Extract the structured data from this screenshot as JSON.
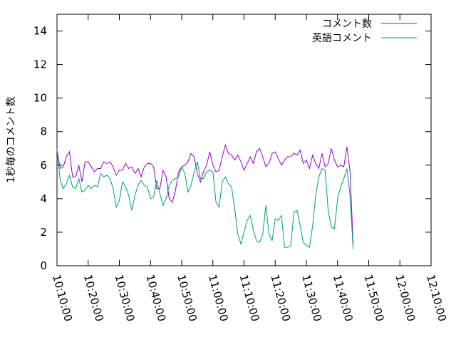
{
  "chart_data": {
    "type": "line",
    "title": "",
    "xlabel": "",
    "ylabel": "1秒毎のコメント数",
    "xlim": [
      "10:10:00",
      "12:10:00"
    ],
    "ylim": [
      0,
      15
    ],
    "x_ticks": [
      "10:10:00",
      "10:20:00",
      "10:30:00",
      "10:40:00",
      "10:50:00",
      "11:00:00",
      "11:10:00",
      "11:20:00",
      "11:30:00",
      "11:40:00",
      "11:50:00",
      "12:00:00",
      "12:10:00"
    ],
    "y_ticks": [
      0,
      2,
      4,
      6,
      8,
      10,
      12,
      14
    ],
    "grid": false,
    "legend_position": "top-right",
    "series": [
      {
        "name": "コメント数",
        "color": "#9400d3",
        "points": [
          [
            "10:10:00",
            6.9
          ],
          [
            "10:11:00",
            5.8
          ],
          [
            "10:12:00",
            5.9
          ],
          [
            "10:13:00",
            6.5
          ],
          [
            "10:14:00",
            6.8
          ],
          [
            "10:15:00",
            5.3
          ],
          [
            "10:16:00",
            5.3
          ],
          [
            "10:17:00",
            6.0
          ],
          [
            "10:18:00",
            5.0
          ],
          [
            "10:19:00",
            6.2
          ],
          [
            "10:20:00",
            6.2
          ],
          [
            "10:21:00",
            5.9
          ],
          [
            "10:22:00",
            5.6
          ],
          [
            "10:23:00",
            5.8
          ],
          [
            "10:24:00",
            5.8
          ],
          [
            "10:25:00",
            6.2
          ],
          [
            "10:26:00",
            6.1
          ],
          [
            "10:27:00",
            6.2
          ],
          [
            "10:28:00",
            5.9
          ],
          [
            "10:29:00",
            5.4
          ],
          [
            "10:30:00",
            5.7
          ],
          [
            "10:31:00",
            5.7
          ],
          [
            "10:32:00",
            6.1
          ],
          [
            "10:33:00",
            5.8
          ],
          [
            "10:34:00",
            5.9
          ],
          [
            "10:35:00",
            5.5
          ],
          [
            "10:36:00",
            5.8
          ],
          [
            "10:37:00",
            5.3
          ],
          [
            "10:38:00",
            5.9
          ],
          [
            "10:39:00",
            6.1
          ],
          [
            "10:40:00",
            6.1
          ],
          [
            "10:41:00",
            5.9
          ],
          [
            "10:42:00",
            4.6
          ],
          [
            "10:43:00",
            4.6
          ],
          [
            "10:44:00",
            5.7
          ],
          [
            "10:45:00",
            5.3
          ],
          [
            "10:46:00",
            4.0
          ],
          [
            "10:47:00",
            3.8
          ],
          [
            "10:48:00",
            4.5
          ],
          [
            "10:49:00",
            5.6
          ],
          [
            "10:50:00",
            5.9
          ],
          [
            "10:51:00",
            6.0
          ],
          [
            "10:52:00",
            6.2
          ],
          [
            "10:53:00",
            6.7
          ],
          [
            "10:54:00",
            6.5
          ],
          [
            "10:55:00",
            5.5
          ],
          [
            "10:56:00",
            5.0
          ],
          [
            "10:57:00",
            5.6
          ],
          [
            "10:58:00",
            6.0
          ],
          [
            "10:59:00",
            6.8
          ],
          [
            "11:00:00",
            6.0
          ],
          [
            "11:01:00",
            5.6
          ],
          [
            "11:02:00",
            5.7
          ],
          [
            "11:03:00",
            6.5
          ],
          [
            "11:04:00",
            7.2
          ],
          [
            "11:05:00",
            6.7
          ],
          [
            "11:06:00",
            6.6
          ],
          [
            "11:07:00",
            6.3
          ],
          [
            "11:08:00",
            6.6
          ],
          [
            "11:09:00",
            6.2
          ],
          [
            "11:10:00",
            5.7
          ],
          [
            "11:11:00",
            6.1
          ],
          [
            "11:12:00",
            6.5
          ],
          [
            "11:13:00",
            6.1
          ],
          [
            "11:14:00",
            6.8
          ],
          [
            "11:15:00",
            7.0
          ],
          [
            "11:16:00",
            6.5
          ],
          [
            "11:17:00",
            5.9
          ],
          [
            "11:18:00",
            6.1
          ],
          [
            "11:19:00",
            6.7
          ],
          [
            "11:20:00",
            6.8
          ],
          [
            "11:21:00",
            6.4
          ],
          [
            "11:22:00",
            6.0
          ],
          [
            "11:23:00",
            6.3
          ],
          [
            "11:24:00",
            6.5
          ],
          [
            "11:25:00",
            6.5
          ],
          [
            "11:26:00",
            6.7
          ],
          [
            "11:27:00",
            6.6
          ],
          [
            "11:28:00",
            6.9
          ],
          [
            "11:29:00",
            6.1
          ],
          [
            "11:30:00",
            6.3
          ],
          [
            "11:31:00",
            5.8
          ],
          [
            "11:32:00",
            6.6
          ],
          [
            "11:33:00",
            6.1
          ],
          [
            "11:34:00",
            5.8
          ],
          [
            "11:35:00",
            6.7
          ],
          [
            "11:36:00",
            5.9
          ],
          [
            "11:37:00",
            6.1
          ],
          [
            "11:38:00",
            7.0
          ],
          [
            "11:39:00",
            6.3
          ],
          [
            "11:40:00",
            5.9
          ],
          [
            "11:41:00",
            6.0
          ],
          [
            "11:42:00",
            5.9
          ],
          [
            "11:43:00",
            7.1
          ],
          [
            "11:44:00",
            5.6
          ],
          [
            "11:45:00",
            1.3
          ]
        ]
      },
      {
        "name": "英語コメント",
        "color": "#009e73",
        "points": [
          [
            "10:10:00",
            7.0
          ],
          [
            "10:11:00",
            5.1
          ],
          [
            "10:12:00",
            4.6
          ],
          [
            "10:13:00",
            4.9
          ],
          [
            "10:14:00",
            5.4
          ],
          [
            "10:15:00",
            4.7
          ],
          [
            "10:16:00",
            4.6
          ],
          [
            "10:17:00",
            5.2
          ],
          [
            "10:18:00",
            4.4
          ],
          [
            "10:19:00",
            4.5
          ],
          [
            "10:20:00",
            4.8
          ],
          [
            "10:21:00",
            4.6
          ],
          [
            "10:22:00",
            4.8
          ],
          [
            "10:23:00",
            4.7
          ],
          [
            "10:24:00",
            5.5
          ],
          [
            "10:25:00",
            5.3
          ],
          [
            "10:26:00",
            5.4
          ],
          [
            "10:27:00",
            5.2
          ],
          [
            "10:28:00",
            4.6
          ],
          [
            "10:29:00",
            3.5
          ],
          [
            "10:30:00",
            3.9
          ],
          [
            "10:31:00",
            5.0
          ],
          [
            "10:32:00",
            4.7
          ],
          [
            "10:33:00",
            4.2
          ],
          [
            "10:34:00",
            3.3
          ],
          [
            "10:35:00",
            4.2
          ],
          [
            "10:36:00",
            4.8
          ],
          [
            "10:37:00",
            5.1
          ],
          [
            "10:38:00",
            4.8
          ],
          [
            "10:39:00",
            4.7
          ],
          [
            "10:40:00",
            4.0
          ],
          [
            "10:41:00",
            4.1
          ],
          [
            "10:42:00",
            5.1
          ],
          [
            "10:43:00",
            4.3
          ],
          [
            "10:44:00",
            3.6
          ],
          [
            "10:45:00",
            4.0
          ],
          [
            "10:46:00",
            4.8
          ],
          [
            "10:47:00",
            5.1
          ],
          [
            "10:48:00",
            5.2
          ],
          [
            "10:49:00",
            5.3
          ],
          [
            "10:50:00",
            5.9
          ],
          [
            "10:51:00",
            5.5
          ],
          [
            "10:52:00",
            4.4
          ],
          [
            "10:53:00",
            4.8
          ],
          [
            "10:54:00",
            5.6
          ],
          [
            "10:55:00",
            6.2
          ],
          [
            "10:56:00",
            5.2
          ],
          [
            "10:57:00",
            5.2
          ],
          [
            "10:58:00",
            5.6
          ],
          [
            "10:59:00",
            5.7
          ],
          [
            "11:00:00",
            5.6
          ],
          [
            "11:01:00",
            3.8
          ],
          [
            "11:02:00",
            3.5
          ],
          [
            "11:03:00",
            5.0
          ],
          [
            "11:04:00",
            5.3
          ],
          [
            "11:05:00",
            4.9
          ],
          [
            "11:06:00",
            4.7
          ],
          [
            "11:07:00",
            3.4
          ],
          [
            "11:08:00",
            1.9
          ],
          [
            "11:09:00",
            1.3
          ],
          [
            "11:10:00",
            2.0
          ],
          [
            "11:11:00",
            2.7
          ],
          [
            "11:12:00",
            3.0
          ],
          [
            "11:13:00",
            2.1
          ],
          [
            "11:14:00",
            1.5
          ],
          [
            "11:15:00",
            1.4
          ],
          [
            "11:16:00",
            1.9
          ],
          [
            "11:17:00",
            3.6
          ],
          [
            "11:18:00",
            1.9
          ],
          [
            "11:19:00",
            1.5
          ],
          [
            "11:20:00",
            2.8
          ],
          [
            "11:21:00",
            2.7
          ],
          [
            "11:22:00",
            3.0
          ],
          [
            "11:23:00",
            1.1
          ],
          [
            "11:24:00",
            1.1
          ],
          [
            "11:25:00",
            1.2
          ],
          [
            "11:26:00",
            3.2
          ],
          [
            "11:27:00",
            3.3
          ],
          [
            "11:28:00",
            2.4
          ],
          [
            "11:29:00",
            1.4
          ],
          [
            "11:30:00",
            1.2
          ],
          [
            "11:31:00",
            1.1
          ],
          [
            "11:32:00",
            2.4
          ],
          [
            "11:33:00",
            4.2
          ],
          [
            "11:34:00",
            5.3
          ],
          [
            "11:35:00",
            5.8
          ],
          [
            "11:36:00",
            5.7
          ],
          [
            "11:37:00",
            3.3
          ],
          [
            "11:38:00",
            2.3
          ],
          [
            "11:39:00",
            2.2
          ],
          [
            "11:40:00",
            4.0
          ],
          [
            "11:41:00",
            4.7
          ],
          [
            "11:42:00",
            5.2
          ],
          [
            "11:43:00",
            5.8
          ],
          [
            "11:44:00",
            4.2
          ],
          [
            "11:45:00",
            1.0
          ]
        ]
      }
    ]
  }
}
